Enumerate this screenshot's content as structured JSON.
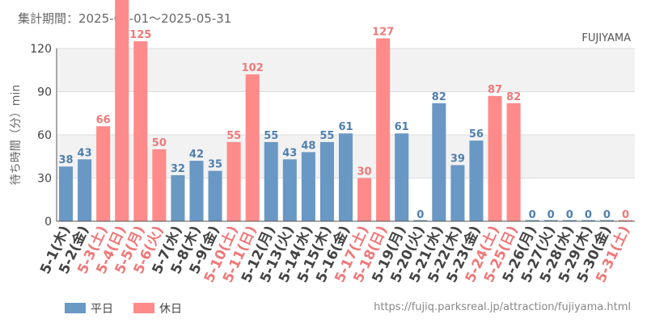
{
  "header": {
    "period": "集計期間：2025-05-01～2025-05-31",
    "attraction": "FUJIYAMA"
  },
  "footer": {
    "url": "https://fujiq.parksreal.jp/attraction/fujiyama.html"
  },
  "colors": {
    "weekday": "#6a98c4",
    "holiday": "#ff8a8a",
    "weekday_text": "#4f7faf",
    "holiday_text": "#f07878"
  },
  "chart_data": {
    "type": "bar",
    "ylabel": "待ち時間（分）min",
    "ylim": [
      0,
      120
    ],
    "yticks": [
      0,
      30,
      60,
      90,
      120
    ],
    "grid": true,
    "legend_position": "bottom-left",
    "series": [
      {
        "name": "平日",
        "color": "#6a98c4"
      },
      {
        "name": "休日",
        "color": "#ff8a8a"
      }
    ],
    "categories": [
      "5-1(木)",
      "5-2(金)",
      "5-3(土)",
      "5-4(日)",
      "5-5(月)",
      "5-6(火)",
      "5-7(水)",
      "5-8(木)",
      "5-9(金)",
      "5-10(土)",
      "5-11(日)",
      "5-12(月)",
      "5-13(火)",
      "5-14(水)",
      "5-15(木)",
      "5-16(金)",
      "5-17(土)",
      "5-18(日)",
      "5-19(月)",
      "5-20(火)",
      "5-21(水)",
      "5-22(木)",
      "5-23(金)",
      "5-24(土)",
      "5-25(日)",
      "5-26(月)",
      "5-27(火)",
      "5-28(水)",
      "5-29(木)",
      "5-30(金)",
      "5-31(土)"
    ],
    "values": [
      38,
      43,
      66,
      null,
      125,
      50,
      32,
      42,
      35,
      55,
      102,
      55,
      43,
      48,
      55,
      61,
      30,
      127,
      61,
      0,
      82,
      39,
      56,
      87,
      82,
      0,
      0,
      0,
      0,
      0,
      0
    ],
    "value_labels": [
      "38",
      "43",
      "66",
      "",
      "125",
      "50",
      "32",
      "42",
      "35",
      "55",
      "102",
      "55",
      "43",
      "48",
      "55",
      "61",
      "30",
      "127",
      "61",
      "0",
      "82",
      "39",
      "56",
      "87",
      "82",
      "0",
      "0",
      "0",
      "0",
      "0",
      "0"
    ],
    "day_type": [
      "weekday",
      "weekday",
      "holiday",
      "holiday",
      "holiday",
      "holiday",
      "weekday",
      "weekday",
      "weekday",
      "holiday",
      "holiday",
      "weekday",
      "weekday",
      "weekday",
      "weekday",
      "weekday",
      "holiday",
      "holiday",
      "weekday",
      "weekday",
      "weekday",
      "weekday",
      "weekday",
      "holiday",
      "holiday",
      "weekday",
      "weekday",
      "weekday",
      "weekday",
      "weekday",
      "holiday"
    ]
  }
}
